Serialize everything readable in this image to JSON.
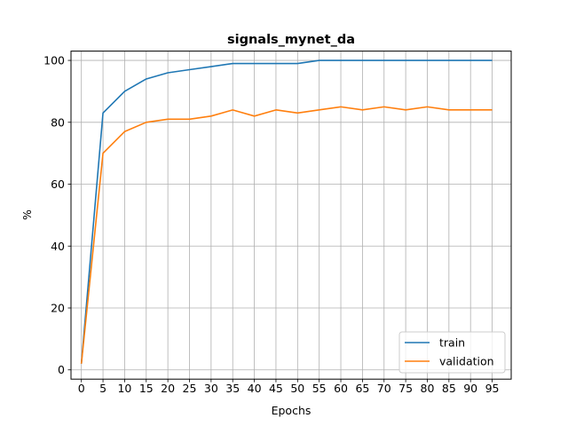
{
  "chart_data": {
    "type": "line",
    "title": "signals_mynet_da",
    "xlabel": "Epochs",
    "ylabel": "%",
    "xlim": [
      -2.4,
      99.4
    ],
    "ylim": [
      -3,
      103
    ],
    "x_ticks": [
      0,
      5,
      10,
      15,
      20,
      25,
      30,
      35,
      40,
      45,
      50,
      55,
      60,
      65,
      70,
      75,
      80,
      85,
      90,
      95
    ],
    "y_ticks": [
      0,
      20,
      40,
      60,
      80,
      100
    ],
    "grid": true,
    "legend_position": "lower-right",
    "x": [
      0,
      5,
      10,
      15,
      20,
      25,
      30,
      35,
      40,
      45,
      50,
      55,
      60,
      65,
      70,
      75,
      80,
      85,
      90,
      95
    ],
    "series": [
      {
        "name": "train",
        "color": "#1f77b4",
        "values": [
          2,
          83,
          90,
          94,
          96,
          97,
          98,
          99,
          99,
          99,
          99,
          100,
          100,
          100,
          100,
          100,
          100,
          100,
          100,
          100
        ]
      },
      {
        "name": "validation",
        "color": "#ff7f0e",
        "values": [
          2,
          70,
          77,
          80,
          81,
          81,
          82,
          84,
          82,
          84,
          83,
          84,
          85,
          84,
          85,
          84,
          85,
          84,
          84,
          84
        ]
      }
    ]
  }
}
